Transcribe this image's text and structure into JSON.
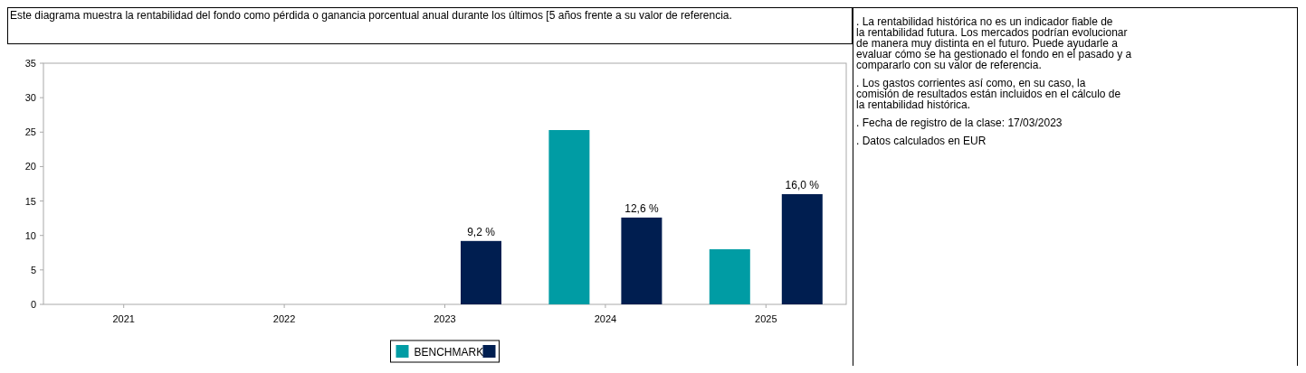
{
  "chart_data": {
    "type": "bar",
    "title": "Este diagrama muestra la rentabilidad del fondo como pérdida o ganancia porcentual anual durante los últimos [5 años frente a su valor de referencia.",
    "categories": [
      "2021",
      "2022",
      "2023",
      "2024",
      "2025"
    ],
    "series": [
      {
        "name": "BENCHMARK",
        "color": "#009ca4",
        "values": [
          null,
          null,
          null,
          25.3,
          8.0
        ]
      },
      {
        "color": "#001e50",
        "values": [
          null,
          null,
          9.2,
          12.6,
          16.0
        ],
        "value_labels": [
          null,
          null,
          "9,2 %",
          "12,6 %",
          "16,0 %"
        ]
      }
    ],
    "ylim": [
      0,
      35
    ],
    "yticks": [
      0,
      5,
      10,
      15,
      20,
      25,
      30,
      35
    ],
    "grid": false,
    "legend": "bottom",
    "annotations": [
      ". La rentabilidad histórica no es un indicador fiable de la rentabilidad futura. Los mercados podrían evolucionar de manera muy distinta en el futuro. Puede ayudarle a evaluar cómo se ha gestionado el fondo en el pasado y a compararlo con su valor de referencia.",
      ". Los gastos corrientes así como, en su caso, la comisión de resultados están incluidos en el cálculo de la rentabilidad histórica.",
      ". Fecha de registro de la clase: 17/03/2023",
      ". Datos calculados en EUR"
    ]
  }
}
